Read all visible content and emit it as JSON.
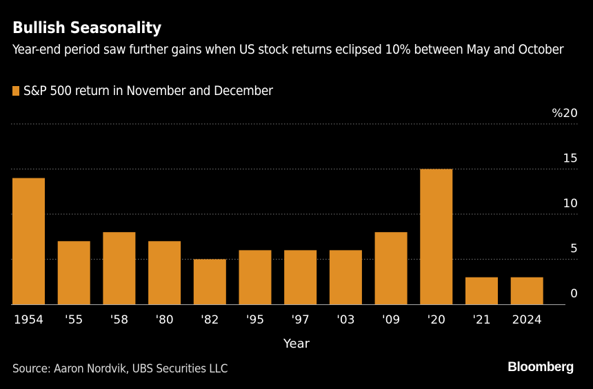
{
  "title": "Bullish Seasonality",
  "subtitle": "Year-end period saw further gains when US stock returns eclipsed 10% between May and October",
  "source": "Source: Aaron Nordvik, UBS Securities LLC",
  "brand": "Bloomberg",
  "chart_data": {
    "type": "bar",
    "categories": [
      "1954",
      "'55",
      "'58",
      "'80",
      "'82",
      "'95",
      "'97",
      "'03",
      "'09",
      "'20",
      "'21",
      "2024"
    ],
    "series": [
      {
        "name": "S&P 500 return in November and December",
        "values": [
          14,
          7,
          8,
          7,
          5,
          6,
          6,
          6,
          8,
          15,
          3,
          3
        ],
        "color": "#E08E25"
      }
    ],
    "xlabel": "Year",
    "ylabel": "",
    "yunit": "%",
    "ylim": [
      0,
      20
    ],
    "yticks": [
      0,
      5,
      10,
      15,
      20
    ],
    "grid": true,
    "legend": "top-left"
  }
}
